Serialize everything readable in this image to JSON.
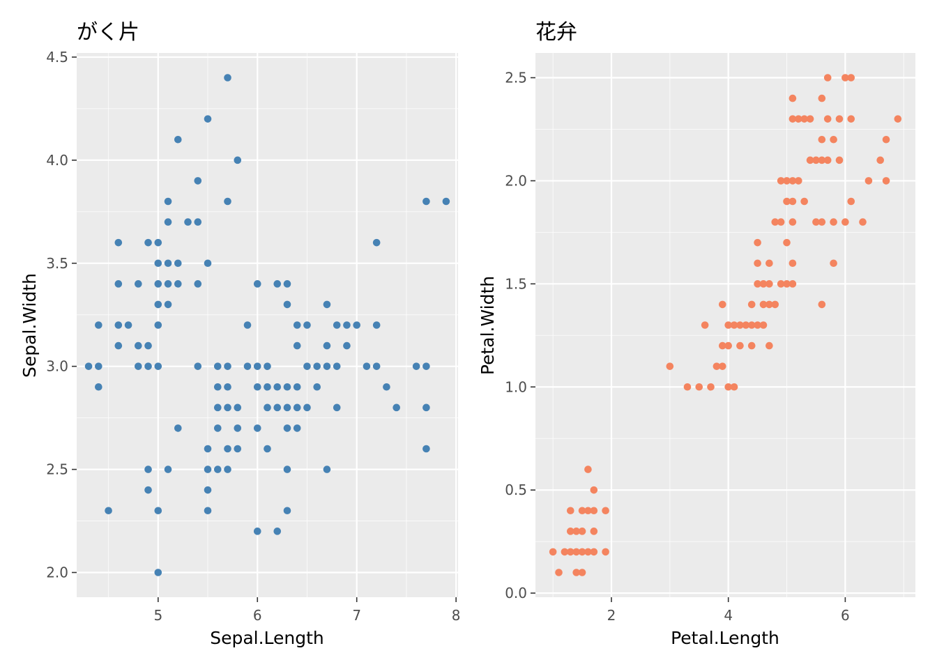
{
  "chart_data": [
    {
      "type": "scatter",
      "title": "がく片",
      "xlabel": "Sepal.Length",
      "ylabel": "Sepal.Width",
      "xlim": [
        4.18,
        8.02
      ],
      "ylim": [
        1.88,
        4.52
      ],
      "x_major_ticks": [
        5,
        6,
        7,
        8
      ],
      "x_tick_labels": [
        "5",
        "6",
        "7",
        "8"
      ],
      "y_major_ticks": [
        2.0,
        2.5,
        3.0,
        3.5,
        4.0,
        4.5
      ],
      "y_tick_labels": [
        "2.0",
        "2.5",
        "3.0",
        "3.5",
        "4.0",
        "4.5"
      ],
      "grid": true,
      "point_color": "#4682b4",
      "points": [
        [
          4.3,
          3.0
        ],
        [
          4.4,
          3.0
        ],
        [
          4.4,
          2.9
        ],
        [
          4.4,
          3.2
        ],
        [
          4.5,
          2.3
        ],
        [
          4.6,
          3.1
        ],
        [
          4.6,
          3.6
        ],
        [
          4.6,
          3.4
        ],
        [
          4.6,
          3.2
        ],
        [
          4.7,
          3.2
        ],
        [
          4.8,
          3.4
        ],
        [
          4.8,
          3.0
        ],
        [
          4.8,
          3.1
        ],
        [
          4.9,
          3.0
        ],
        [
          4.9,
          3.1
        ],
        [
          4.9,
          3.6
        ],
        [
          4.9,
          2.4
        ],
        [
          4.9,
          2.5
        ],
        [
          5.0,
          3.6
        ],
        [
          5.0,
          3.4
        ],
        [
          5.0,
          3.0
        ],
        [
          5.0,
          3.5
        ],
        [
          5.0,
          3.3
        ],
        [
          5.0,
          3.2
        ],
        [
          5.0,
          2.0
        ],
        [
          5.0,
          2.3
        ],
        [
          5.1,
          3.5
        ],
        [
          5.1,
          3.7
        ],
        [
          5.1,
          3.8
        ],
        [
          5.1,
          3.3
        ],
        [
          5.1,
          3.4
        ],
        [
          5.1,
          2.5
        ],
        [
          5.2,
          3.5
        ],
        [
          5.2,
          3.4
        ],
        [
          5.2,
          4.1
        ],
        [
          5.2,
          2.7
        ],
        [
          5.3,
          3.7
        ],
        [
          5.4,
          3.9
        ],
        [
          5.4,
          3.7
        ],
        [
          5.4,
          3.4
        ],
        [
          5.4,
          3.0
        ],
        [
          5.5,
          4.2
        ],
        [
          5.5,
          3.5
        ],
        [
          5.5,
          2.3
        ],
        [
          5.5,
          2.4
        ],
        [
          5.5,
          2.5
        ],
        [
          5.5,
          2.6
        ],
        [
          5.6,
          2.9
        ],
        [
          5.6,
          3.0
        ],
        [
          5.6,
          2.5
        ],
        [
          5.6,
          2.7
        ],
        [
          5.6,
          2.8
        ],
        [
          5.7,
          4.4
        ],
        [
          5.7,
          3.8
        ],
        [
          5.7,
          2.6
        ],
        [
          5.7,
          3.0
        ],
        [
          5.7,
          2.9
        ],
        [
          5.7,
          2.8
        ],
        [
          5.7,
          2.5
        ],
        [
          5.8,
          4.0
        ],
        [
          5.8,
          2.7
        ],
        [
          5.8,
          2.6
        ],
        [
          5.8,
          2.8
        ],
        [
          5.9,
          3.0
        ],
        [
          5.9,
          3.2
        ],
        [
          6.0,
          2.2
        ],
        [
          6.0,
          2.9
        ],
        [
          6.0,
          3.4
        ],
        [
          6.0,
          2.7
        ],
        [
          6.0,
          3.0
        ],
        [
          6.1,
          2.8
        ],
        [
          6.1,
          2.9
        ],
        [
          6.1,
          3.0
        ],
        [
          6.1,
          2.6
        ],
        [
          6.2,
          2.2
        ],
        [
          6.2,
          2.9
        ],
        [
          6.2,
          2.8
        ],
        [
          6.2,
          3.4
        ],
        [
          6.3,
          3.3
        ],
        [
          6.3,
          2.5
        ],
        [
          6.3,
          2.3
        ],
        [
          6.3,
          2.7
        ],
        [
          6.3,
          2.9
        ],
        [
          6.3,
          2.8
        ],
        [
          6.3,
          3.4
        ],
        [
          6.4,
          3.2
        ],
        [
          6.4,
          2.9
        ],
        [
          6.4,
          2.7
        ],
        [
          6.4,
          2.8
        ],
        [
          6.4,
          3.1
        ],
        [
          6.5,
          2.8
        ],
        [
          6.5,
          3.0
        ],
        [
          6.5,
          3.2
        ],
        [
          6.6,
          2.9
        ],
        [
          6.6,
          3.0
        ],
        [
          6.7,
          3.1
        ],
        [
          6.7,
          3.0
        ],
        [
          6.7,
          2.5
        ],
        [
          6.7,
          3.3
        ],
        [
          6.8,
          2.8
        ],
        [
          6.8,
          3.0
        ],
        [
          6.8,
          3.2
        ],
        [
          6.9,
          3.1
        ],
        [
          6.9,
          3.2
        ],
        [
          7.0,
          3.2
        ],
        [
          7.1,
          3.0
        ],
        [
          7.2,
          3.6
        ],
        [
          7.2,
          3.2
        ],
        [
          7.2,
          3.0
        ],
        [
          7.3,
          2.9
        ],
        [
          7.4,
          2.8
        ],
        [
          7.6,
          3.0
        ],
        [
          7.7,
          3.8
        ],
        [
          7.7,
          2.6
        ],
        [
          7.7,
          2.8
        ],
        [
          7.7,
          3.0
        ],
        [
          7.9,
          3.8
        ]
      ]
    },
    {
      "type": "scatter",
      "title": "花弁",
      "xlabel": "Petal.Length",
      "ylabel": "Petal.Width",
      "xlim": [
        0.7,
        7.2
      ],
      "ylim": [
        -0.02,
        2.62
      ],
      "x_major_ticks": [
        2,
        4,
        6
      ],
      "x_tick_labels": [
        "2",
        "4",
        "6"
      ],
      "y_major_ticks": [
        0.0,
        0.5,
        1.0,
        1.5,
        2.0,
        2.5
      ],
      "y_tick_labels": [
        "0.0",
        "0.5",
        "1.0",
        "1.5",
        "2.0",
        "2.5"
      ],
      "grid": true,
      "point_color": "#f4845f",
      "points": [
        [
          1.0,
          0.2
        ],
        [
          1.1,
          0.1
        ],
        [
          1.2,
          0.2
        ],
        [
          1.3,
          0.2
        ],
        [
          1.3,
          0.3
        ],
        [
          1.3,
          0.4
        ],
        [
          1.4,
          0.2
        ],
        [
          1.4,
          0.1
        ],
        [
          1.4,
          0.3
        ],
        [
          1.5,
          0.2
        ],
        [
          1.5,
          0.1
        ],
        [
          1.5,
          0.4
        ],
        [
          1.5,
          0.3
        ],
        [
          1.6,
          0.2
        ],
        [
          1.6,
          0.4
        ],
        [
          1.6,
          0.6
        ],
        [
          1.7,
          0.2
        ],
        [
          1.7,
          0.4
        ],
        [
          1.7,
          0.3
        ],
        [
          1.7,
          0.5
        ],
        [
          1.9,
          0.2
        ],
        [
          1.9,
          0.4
        ],
        [
          3.0,
          1.1
        ],
        [
          3.3,
          1.0
        ],
        [
          3.5,
          1.0
        ],
        [
          3.6,
          1.3
        ],
        [
          3.7,
          1.0
        ],
        [
          3.8,
          1.1
        ],
        [
          3.9,
          1.4
        ],
        [
          3.9,
          1.1
        ],
        [
          3.9,
          1.2
        ],
        [
          4.0,
          1.3
        ],
        [
          4.0,
          1.0
        ],
        [
          4.0,
          1.2
        ],
        [
          4.1,
          1.0
        ],
        [
          4.1,
          1.3
        ],
        [
          4.2,
          1.3
        ],
        [
          4.2,
          1.2
        ],
        [
          4.3,
          1.3
        ],
        [
          4.4,
          1.4
        ],
        [
          4.4,
          1.3
        ],
        [
          4.4,
          1.2
        ],
        [
          4.5,
          1.5
        ],
        [
          4.5,
          1.3
        ],
        [
          4.5,
          1.6
        ],
        [
          4.5,
          1.7
        ],
        [
          4.6,
          1.5
        ],
        [
          4.6,
          1.4
        ],
        [
          4.6,
          1.3
        ],
        [
          4.7,
          1.4
        ],
        [
          4.7,
          1.6
        ],
        [
          4.7,
          1.5
        ],
        [
          4.7,
          1.2
        ],
        [
          4.8,
          1.8
        ],
        [
          4.8,
          1.4
        ],
        [
          4.9,
          1.5
        ],
        [
          4.9,
          1.8
        ],
        [
          4.9,
          2.0
        ],
        [
          5.0,
          1.7
        ],
        [
          5.0,
          1.5
        ],
        [
          5.0,
          2.0
        ],
        [
          5.0,
          1.9
        ],
        [
          5.1,
          1.5
        ],
        [
          5.1,
          2.4
        ],
        [
          5.1,
          1.6
        ],
        [
          5.1,
          1.9
        ],
        [
          5.1,
          2.0
        ],
        [
          5.1,
          2.3
        ],
        [
          5.1,
          1.8
        ],
        [
          5.2,
          2.3
        ],
        [
          5.2,
          2.0
        ],
        [
          5.3,
          2.3
        ],
        [
          5.3,
          1.9
        ],
        [
          5.4,
          2.1
        ],
        [
          5.4,
          2.3
        ],
        [
          5.5,
          1.8
        ],
        [
          5.5,
          2.1
        ],
        [
          5.6,
          2.4
        ],
        [
          5.6,
          1.8
        ],
        [
          5.6,
          2.2
        ],
        [
          5.6,
          2.1
        ],
        [
          5.6,
          1.4
        ],
        [
          5.7,
          2.5
        ],
        [
          5.7,
          2.1
        ],
        [
          5.7,
          2.3
        ],
        [
          5.8,
          2.2
        ],
        [
          5.8,
          1.8
        ],
        [
          5.8,
          1.6
        ],
        [
          5.9,
          2.3
        ],
        [
          5.9,
          2.1
        ],
        [
          6.0,
          2.5
        ],
        [
          6.0,
          1.8
        ],
        [
          6.1,
          2.3
        ],
        [
          6.1,
          1.9
        ],
        [
          6.1,
          2.5
        ],
        [
          6.3,
          1.8
        ],
        [
          6.4,
          2.0
        ],
        [
          6.6,
          2.1
        ],
        [
          6.7,
          2.2
        ],
        [
          6.7,
          2.0
        ],
        [
          6.9,
          2.3
        ]
      ]
    }
  ]
}
